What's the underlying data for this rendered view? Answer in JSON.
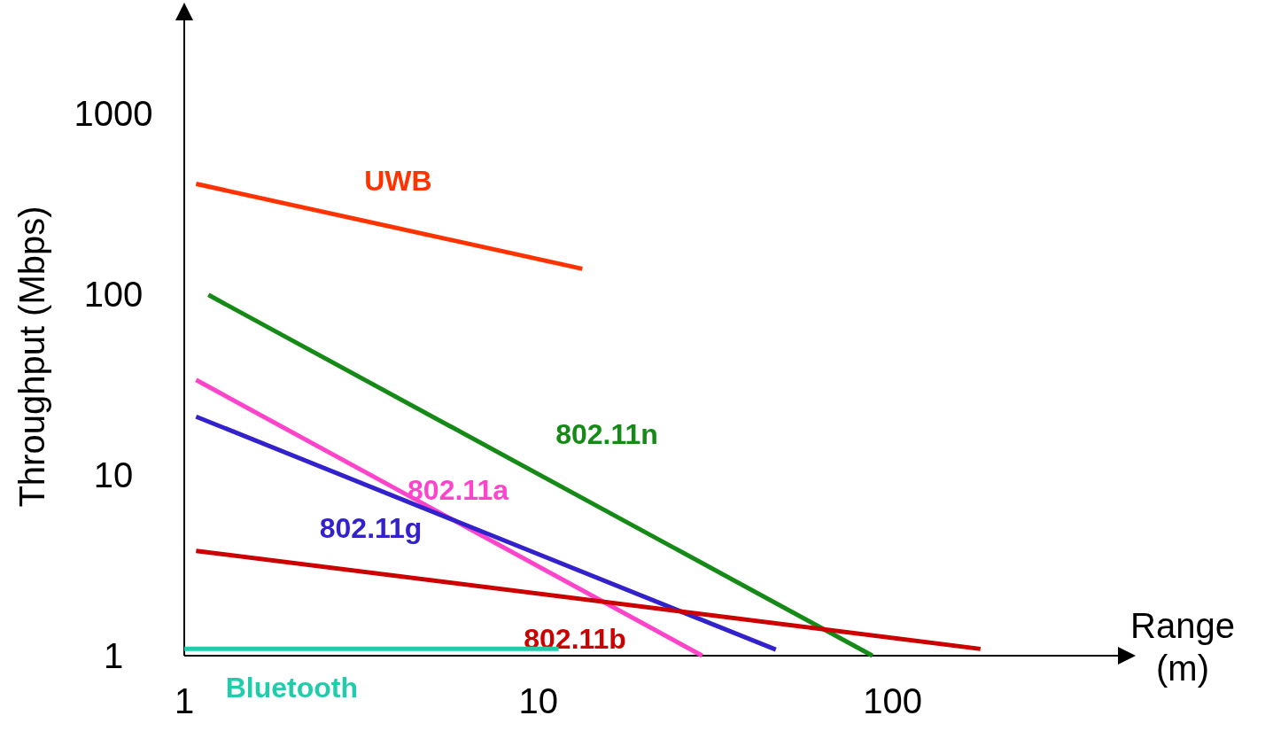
{
  "chart_data": {
    "type": "line",
    "xlabel": "Range (m)",
    "ylabel": "Throughput (Mbps)",
    "log": "xy",
    "xlim": [
      1,
      480
    ],
    "ylim": [
      1,
      4000
    ],
    "xticks": [
      1,
      10,
      100
    ],
    "yticks": [
      1,
      10,
      100,
      1000
    ],
    "grid": false,
    "marker": "none",
    "line_style": "solid",
    "series": [
      {
        "name": "UWB",
        "color": "#ff3300",
        "x": [
          1.08,
          13.3
        ],
        "values": [
          407,
          138
        ]
      },
      {
        "name": "802.11n",
        "color": "#168a16",
        "x": [
          1.17,
          87.7
        ],
        "values": [
          99,
          1
        ]
      },
      {
        "name": "802.11a",
        "color": "#ff44cc",
        "x": [
          1.08,
          29
        ],
        "values": [
          33.5,
          1
        ]
      },
      {
        "name": "802.11g",
        "color": "#3322cc",
        "x": [
          1.08,
          46.8
        ],
        "values": [
          21,
          1.08
        ]
      },
      {
        "name": "802.11b",
        "color": "#cc0000",
        "x": [
          1.08,
          177
        ],
        "values": [
          3.8,
          1.09
        ]
      },
      {
        "name": "Bluetooth",
        "color": "#22ccaa",
        "x": [
          1,
          11.4
        ],
        "values": [
          1.09,
          1.09
        ]
      }
    ]
  }
}
